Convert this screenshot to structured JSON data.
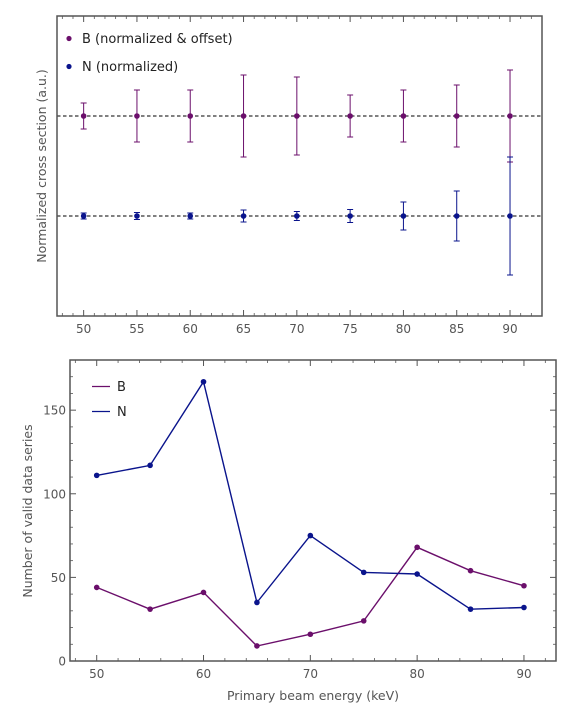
{
  "colors": {
    "B": "#6b0f6b",
    "N": "#0a148c",
    "frame": "#555555"
  },
  "chart_data": [
    {
      "type": "scatter",
      "title": "",
      "xlabel": "",
      "ylabel": "Normalized cross section (a.u.)",
      "xlim": [
        47.5,
        93.0
      ],
      "ylim": [
        0.0,
        3.0
      ],
      "xticks": [
        50,
        55,
        60,
        65,
        70,
        75,
        80,
        85,
        90
      ],
      "reference_lines": [
        2.0,
        1.0
      ],
      "legend": "top-left",
      "grid": false,
      "series": [
        {
          "name": "B (normalized & offset)",
          "x": [
            50,
            55,
            60,
            65,
            70,
            75,
            80,
            85,
            90
          ],
          "y": [
            2.0,
            2.0,
            2.0,
            2.0,
            2.0,
            2.0,
            2.0,
            2.0,
            2.0
          ],
          "err": [
            0.13,
            0.26,
            0.26,
            0.41,
            0.39,
            0.21,
            0.26,
            0.31,
            0.46
          ]
        },
        {
          "name": "N (normalized)",
          "x": [
            50,
            55,
            60,
            65,
            70,
            75,
            80,
            85,
            90
          ],
          "y": [
            1.0,
            1.0,
            1.0,
            1.0,
            1.0,
            1.0,
            1.0,
            1.0,
            1.0
          ],
          "err": [
            0.03,
            0.035,
            0.03,
            0.06,
            0.045,
            0.065,
            0.14,
            0.25,
            0.59
          ]
        }
      ]
    },
    {
      "type": "line",
      "title": "",
      "xlabel": "Primary beam energy (keV)",
      "ylabel": "Number of valid data series",
      "xlim": [
        47.5,
        93.0
      ],
      "ylim": [
        0,
        180
      ],
      "xticks": [
        50,
        60,
        70,
        80,
        90
      ],
      "yticks": [
        0,
        50,
        100,
        150
      ],
      "legend": "top-left",
      "grid": false,
      "series": [
        {
          "name": "B",
          "x": [
            50,
            55,
            60,
            65,
            70,
            75,
            80,
            85,
            90
          ],
          "y": [
            44,
            31,
            41,
            9,
            16,
            24,
            68,
            54,
            45
          ]
        },
        {
          "name": "N",
          "x": [
            50,
            55,
            60,
            65,
            70,
            75,
            80,
            85,
            90
          ],
          "y": [
            111,
            117,
            167,
            35,
            75,
            53,
            52,
            31,
            32
          ]
        }
      ]
    }
  ]
}
